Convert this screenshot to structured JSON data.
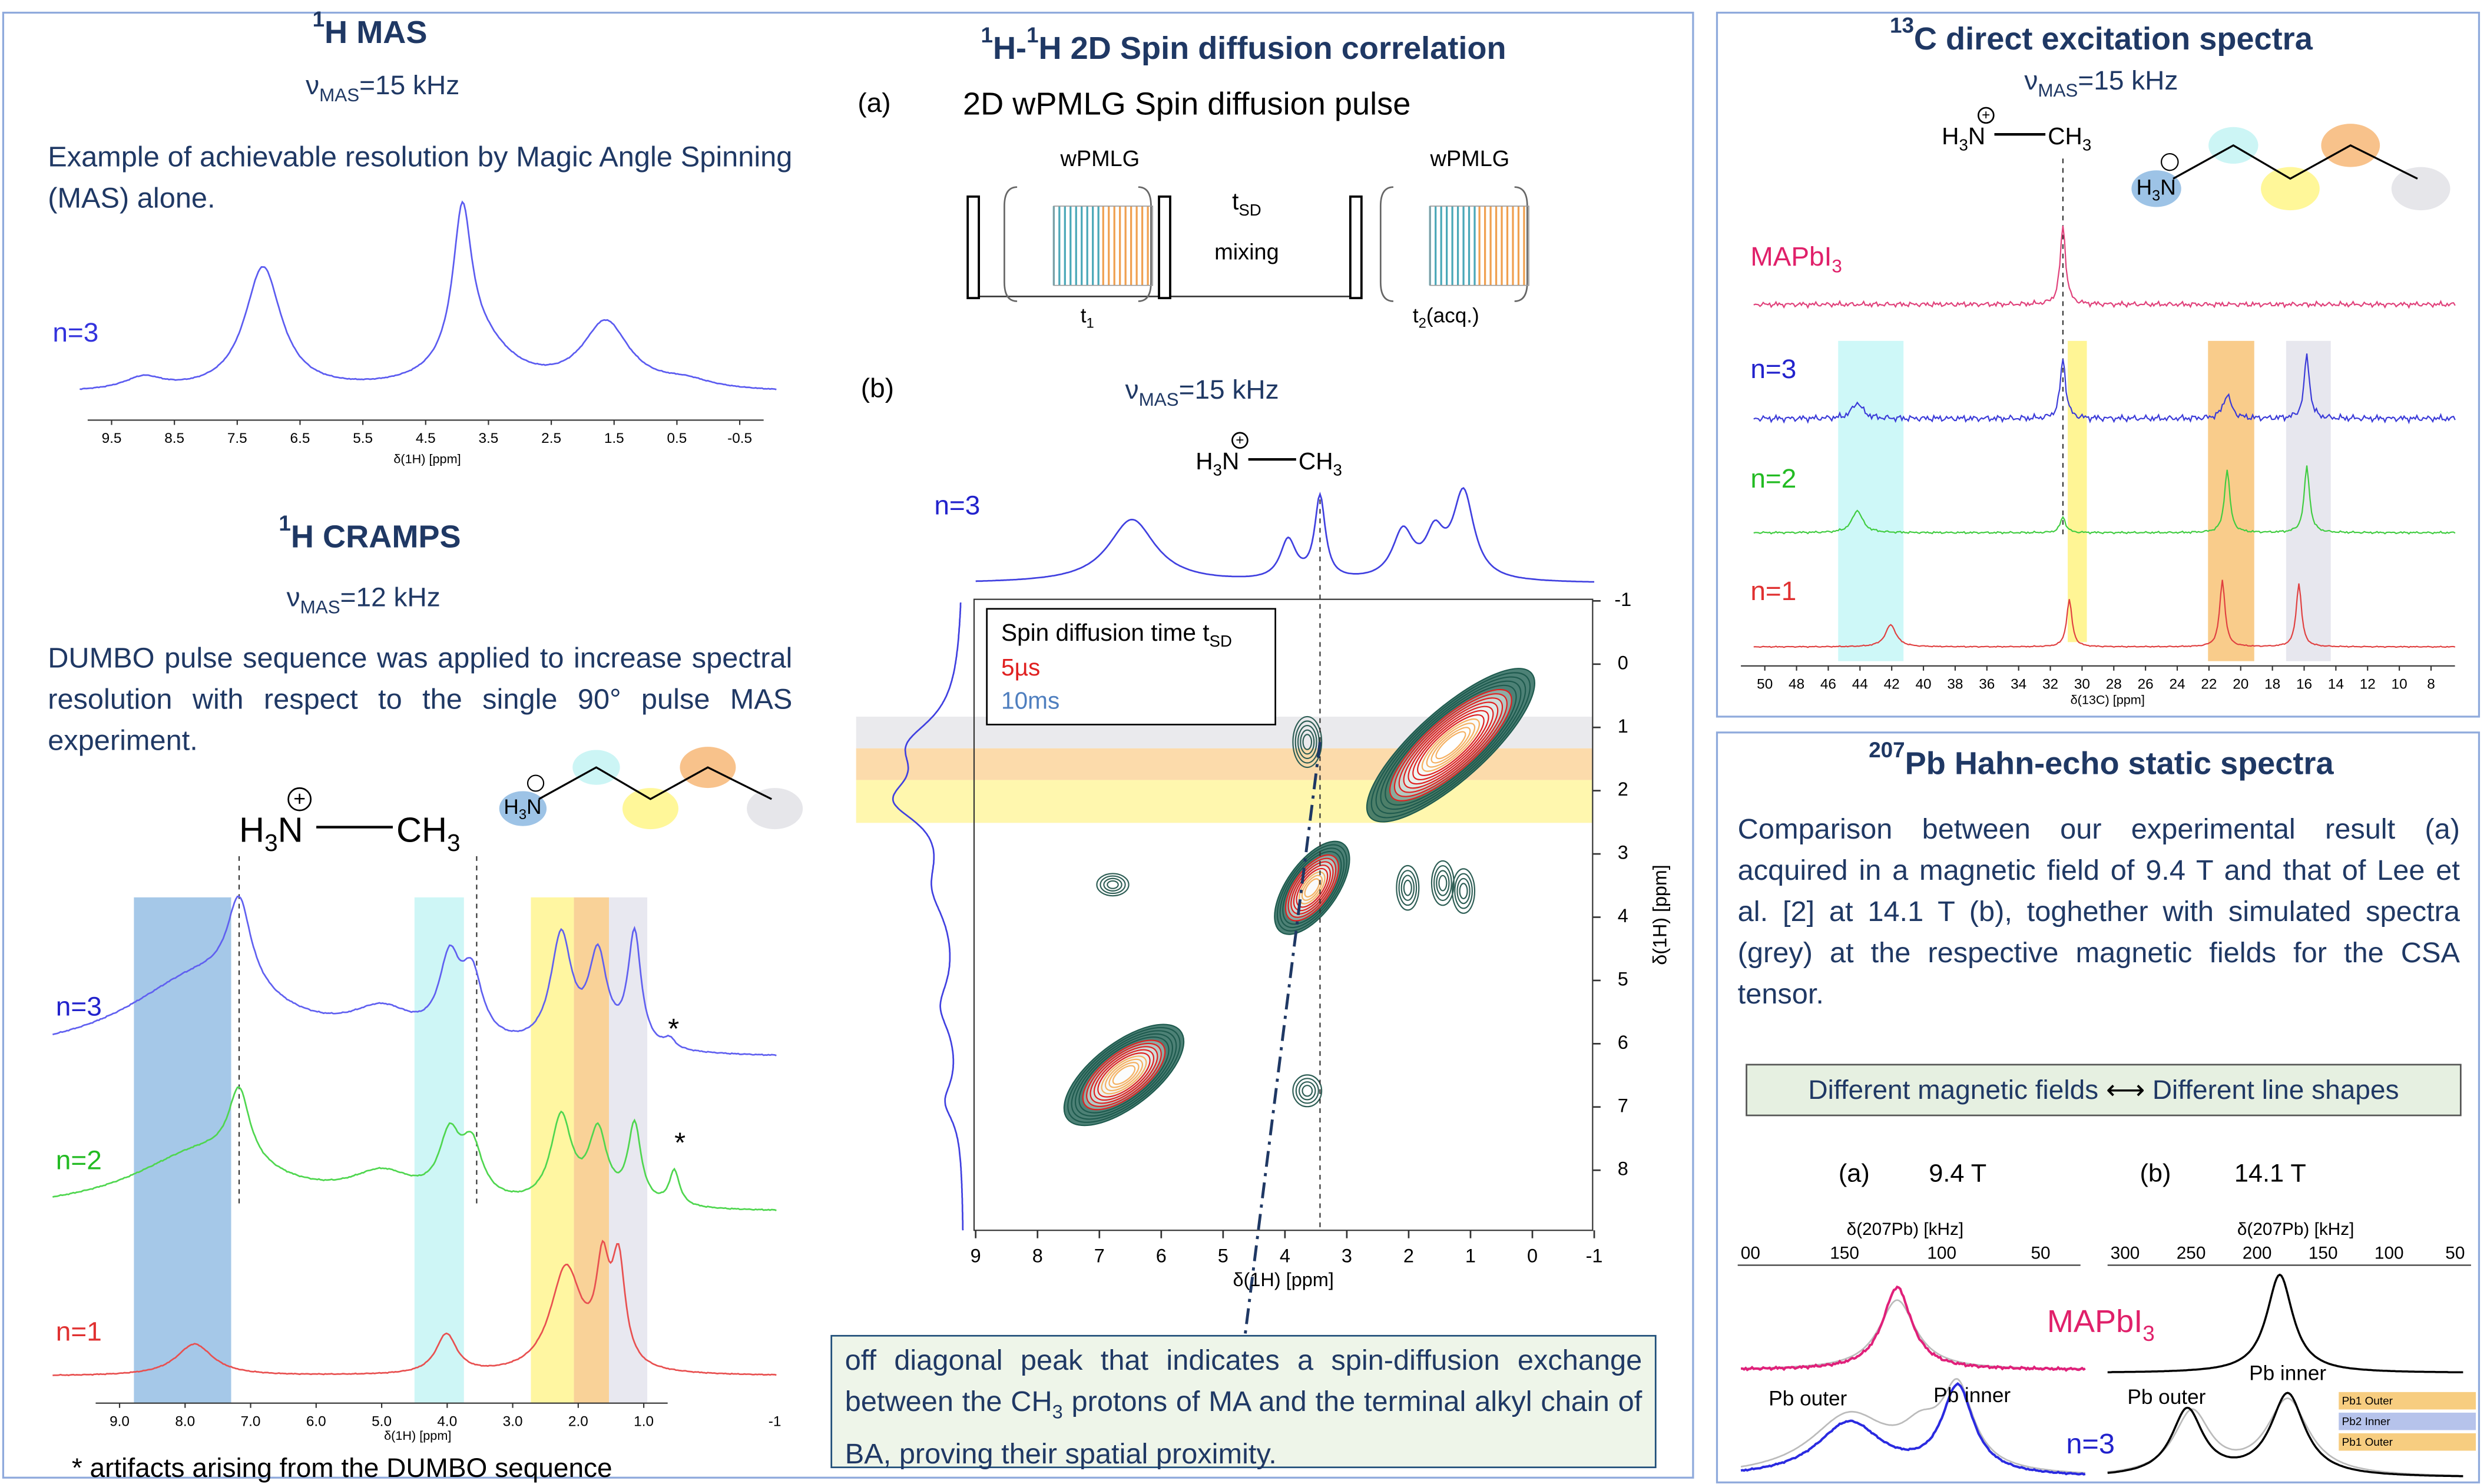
{
  "molecule": {
    "h": "H",
    "h_sub": "3",
    "n": "N",
    "ch": "CH",
    "ch_sub": "3"
  },
  "mas": {
    "title_sup": "1",
    "title": "H MAS",
    "nu": "ν",
    "nu_sub": "MAS",
    "nu_value": "=15 kHz",
    "description": "Example of achievable resolution by Magic Angle Spinning (MAS) alone.",
    "trace": "n=3",
    "ticks": [
      "9.5",
      "8.5",
      "7.5",
      "6.5",
      "5.5",
      "4.5",
      "3.5",
      "2.5",
      "1.5",
      "0.5",
      "-0.5"
    ],
    "axis_label": "δ(1H) [ppm]"
  },
  "cramps": {
    "title_sup": "1",
    "title": "H CRAMPS",
    "nu": "ν",
    "nu_sub": "MAS",
    "nu_value": "=12 kHz",
    "description": "DUMBO pulse sequence was applied to increase spectral resolution with respect to the single 90° pulse MAS experiment.",
    "traces": [
      "n=3",
      "n=2",
      "n=1"
    ],
    "artifact_marks": [
      "*",
      "*"
    ],
    "ticks": [
      "9.0",
      "8.0",
      "7.0",
      "6.0",
      "5.0",
      "4.0",
      "3.0",
      "2.0",
      "1.0",
      "-1"
    ],
    "axis_label": "δ(1H) [ppm]",
    "footnote": "* artifacts arising from the DUMBO sequence"
  },
  "spin_diffusion": {
    "title_sup1": "1",
    "title_mid": "H-",
    "title_sup2": "1",
    "title_rest": "H 2D Spin diffusion correlation",
    "panel_a": "(a)",
    "pulse_title": "2D wPMLG Spin diffusion pulse",
    "wpmlg": [
      "wPMLG",
      "wPMLG"
    ],
    "tsd": "t",
    "tsd_sub": "SD",
    "mixing": "mixing",
    "t1": "t",
    "t1_sub": "1",
    "t2": "t",
    "t2_sub": "2",
    "t2_rest": "(acq.)",
    "panel_b": "(b)",
    "nu": "ν",
    "nu_sub": "MAS",
    "nu_value": "=15 kHz",
    "trace": "n=3",
    "legend_title": "Spin diffusion time t",
    "legend_title_sub": "SD",
    "legend_items": [
      "5µs",
      "10ms"
    ],
    "x_ticks": [
      "9",
      "8",
      "7",
      "6",
      "5",
      "4",
      "3",
      "2",
      "1",
      "0",
      "-1"
    ],
    "y_ticks": [
      "-1",
      "0",
      "1",
      "2",
      "3",
      "4",
      "5",
      "6",
      "7",
      "8"
    ],
    "x_label": "δ(1H) [ppm]",
    "y_label": "δ(1H) [ppm]",
    "note_1": "off diagonal peak that indicates a spin-diffusion exchange between the CH",
    "note_sub": "3",
    "note_2": " protons of MA and the terminal alkyl chain of BA, proving their spatial proximity."
  },
  "carbon": {
    "title_sup": "13",
    "title": "C direct excitation spectra",
    "nu": "ν",
    "nu_sub": "MAS",
    "nu_value": "=15 kHz",
    "mapbi": "MAPbI",
    "mapbi_sub": "3",
    "traces": [
      "n=3",
      "n=2",
      "n=1"
    ],
    "ticks": [
      "50",
      "48",
      "46",
      "44",
      "42",
      "40",
      "38",
      "36",
      "34",
      "32",
      "30",
      "28",
      "26",
      "24",
      "22",
      "20",
      "18",
      "16",
      "14",
      "12",
      "10",
      "8"
    ],
    "axis_label": "δ(13C) [ppm]"
  },
  "lead": {
    "title_sup": "207",
    "title": "Pb Hahn-echo static spectra",
    "description": "Comparison between our experimental result (a) acquired in a magnetic field of 9.4 T and that of Lee et al. [2] at 14.1 T (b), toghether with simulated spectra (grey) at the respective magnetic fields for the CSA tensor.",
    "fields_left": "Different magnetic fields",
    "fields_right": "Different line shapes",
    "panel_a": "(a)",
    "field_a": "9.4 T",
    "panel_b": "(b)",
    "field_b": "14.1 T",
    "axis_label": "δ(207Pb) [kHz]",
    "ticks_a": [
      "00",
      "150",
      "100",
      "50"
    ],
    "ticks_b": [
      "300",
      "250",
      "200",
      "150",
      "100",
      "50"
    ],
    "mapbi": "MAPbI",
    "mapbi_sub": "3",
    "trace": "n=3",
    "pb_outer": "Pb outer",
    "pb_inner": "Pb inner",
    "inset": [
      "Pb1 Outer",
      "Pb2 Inner",
      "Pb1 Outer"
    ]
  }
}
